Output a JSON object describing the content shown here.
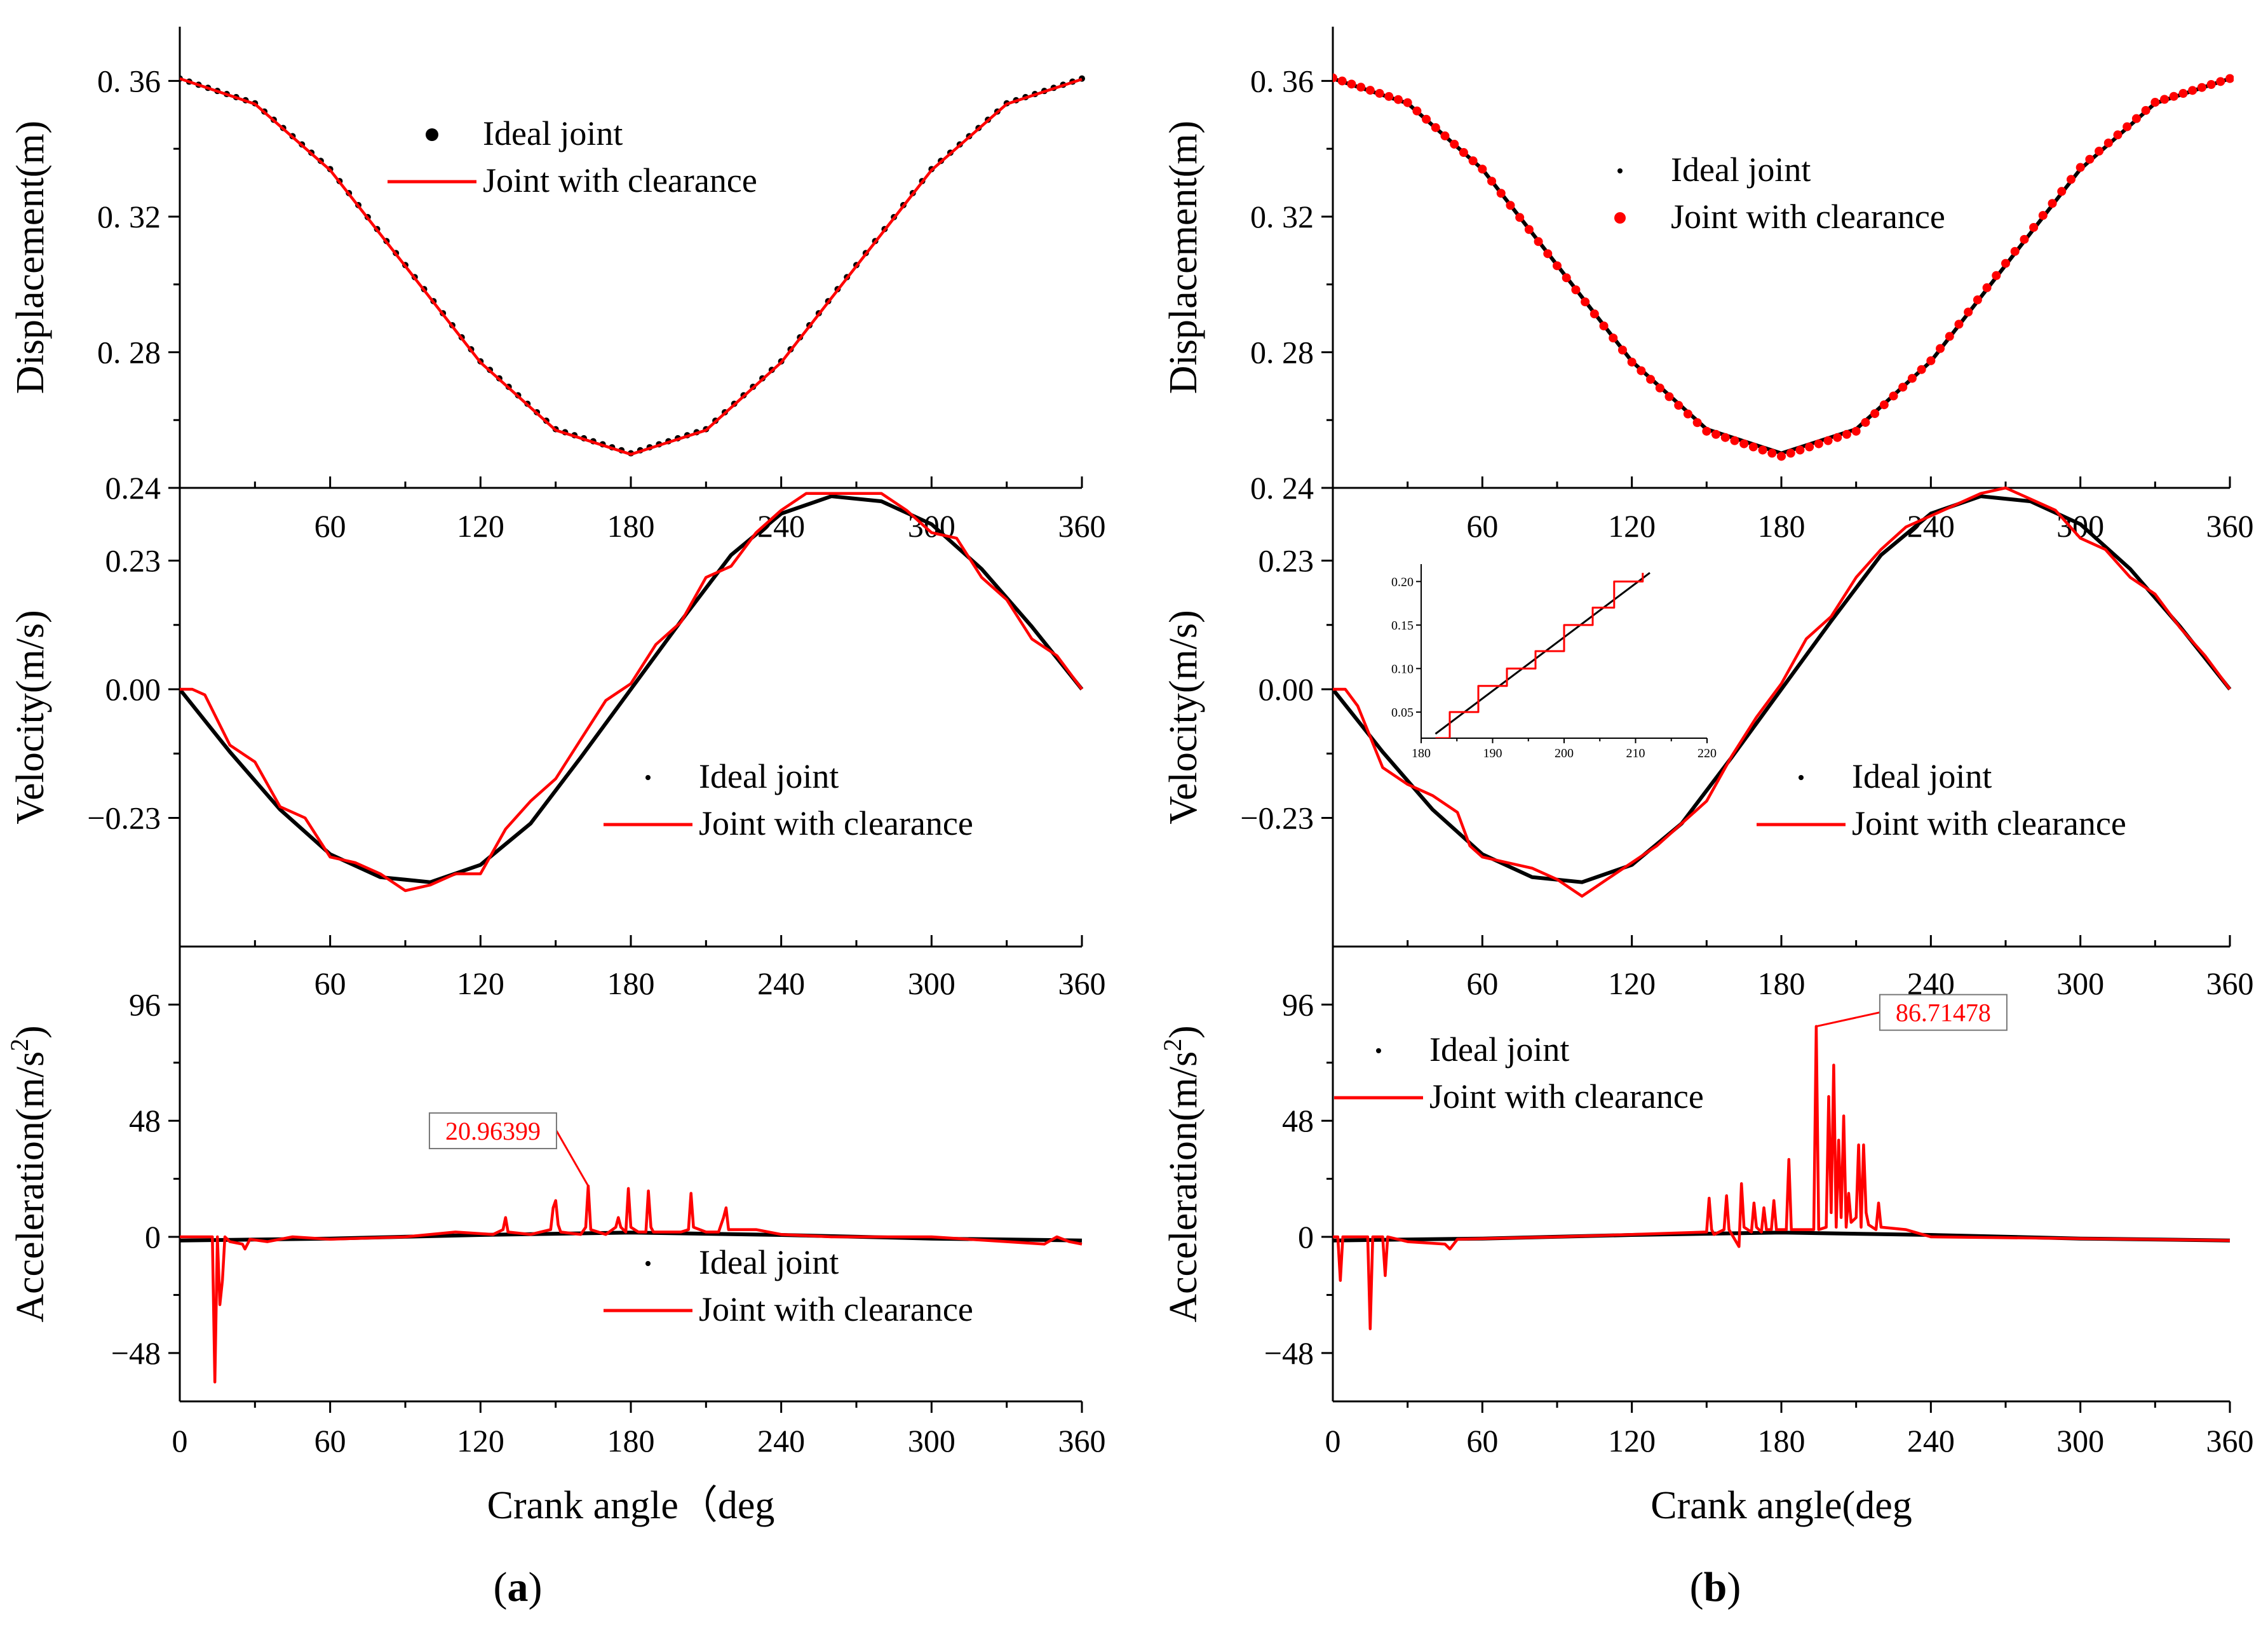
{
  "figure": {
    "panel_labels": [
      "a",
      "b"
    ],
    "colors": {
      "ideal": "#000000",
      "clearance": "#ff0000",
      "axis": "#000000"
    }
  },
  "chart_data": [
    {
      "id": "a-displacement",
      "type": "line",
      "panel": "a",
      "title": "",
      "xlabel": "",
      "ylabel": "Displacement(m)",
      "xlim": [
        0,
        360
      ],
      "ylim": [
        0.24,
        0.376
      ],
      "xticks": [
        60,
        120,
        180,
        240,
        300,
        360
      ],
      "yticks": [
        {
          "v": 0.24,
          "label": "0.24"
        },
        {
          "v": 0.28,
          "label": "0. 28"
        },
        {
          "v": 0.32,
          "label": "0. 32"
        },
        {
          "v": 0.36,
          "label": "0. 36"
        }
      ],
      "legend": [
        "Ideal joint",
        "Joint with clearance"
      ],
      "legend_position": "top-center",
      "series": [
        {
          "name": "Ideal joint",
          "style": "dots",
          "color": "#000000",
          "x": [
            0,
            30,
            60,
            90,
            120,
            150,
            180,
            210,
            240,
            270,
            300,
            330,
            360
          ],
          "y": [
            0.3607,
            0.3534,
            0.334,
            0.3057,
            0.2773,
            0.2573,
            0.2502,
            0.2573,
            0.2773,
            0.3057,
            0.334,
            0.3534,
            0.3607
          ]
        },
        {
          "name": "Joint with clearance",
          "style": "line",
          "color": "#ff0000",
          "x": [
            0,
            30,
            60,
            90,
            120,
            150,
            180,
            210,
            240,
            270,
            300,
            330,
            360
          ],
          "y": [
            0.3607,
            0.3532,
            0.3337,
            0.3054,
            0.277,
            0.257,
            0.2499,
            0.257,
            0.277,
            0.3054,
            0.3337,
            0.3532,
            0.3605
          ]
        }
      ]
    },
    {
      "id": "a-velocity",
      "type": "line",
      "panel": "a",
      "title": "",
      "xlabel": "",
      "ylabel": "Velocity(m/s)",
      "xlim": [
        0,
        360
      ],
      "ylim": [
        -0.46,
        0.36
      ],
      "xticks": [
        60,
        120,
        180,
        240,
        300,
        360
      ],
      "yticks": [
        {
          "v": -0.23,
          "label": "−0.23"
        },
        {
          "v": 0.0,
          "label": "0.00"
        },
        {
          "v": 0.23,
          "label": "0.23"
        }
      ],
      "legend": [
        "Ideal joint",
        "Joint with clearance"
      ],
      "legend_position": "center-right",
      "series": [
        {
          "name": "Ideal joint",
          "style": "line",
          "color": "#000000",
          "x": [
            0,
            20,
            40,
            60,
            80,
            100,
            120,
            140,
            160,
            180,
            200,
            220,
            240,
            260,
            280,
            300,
            320,
            340,
            360
          ],
          "y": [
            0,
            -0.112,
            -0.215,
            -0.295,
            -0.336,
            -0.345,
            -0.314,
            -0.24,
            -0.122,
            0.0,
            0.122,
            0.24,
            0.314,
            0.345,
            0.336,
            0.295,
            0.215,
            0.112,
            0
          ]
        },
        {
          "name": "Joint with clearance",
          "style": "line",
          "color": "#ff0000",
          "x": [
            0,
            5,
            10,
            20,
            30,
            40,
            50,
            60,
            70,
            80,
            90,
            100,
            110,
            120,
            130,
            140,
            150,
            160,
            170,
            180,
            190,
            200,
            210,
            220,
            230,
            240,
            250,
            260,
            270,
            280,
            290,
            300,
            310,
            320,
            330,
            340,
            350,
            360
          ],
          "y": [
            0,
            0,
            -0.01,
            -0.1,
            -0.13,
            -0.21,
            -0.23,
            -0.3,
            -0.31,
            -0.33,
            -0.36,
            -0.35,
            -0.33,
            -0.33,
            -0.25,
            -0.2,
            -0.16,
            -0.09,
            -0.02,
            0.01,
            0.08,
            0.12,
            0.2,
            0.22,
            0.28,
            0.32,
            0.35,
            0.35,
            0.35,
            0.35,
            0.32,
            0.28,
            0.27,
            0.2,
            0.16,
            0.09,
            0.06,
            0
          ]
        }
      ]
    },
    {
      "id": "a-acceleration",
      "type": "line",
      "panel": "a",
      "title": "",
      "xlabel": "Crank angle（deg",
      "ylabel": "Acceleration(m/s²)",
      "xlim": [
        0,
        360
      ],
      "ylim": [
        -68,
        120
      ],
      "xticks": [
        0,
        60,
        120,
        180,
        240,
        300,
        360
      ],
      "yticks": [
        {
          "v": -48,
          "label": "−48"
        },
        {
          "v": 0,
          "label": "0"
        },
        {
          "v": 48,
          "label": "48"
        },
        {
          "v": 96,
          "label": "96"
        }
      ],
      "legend": [
        "Ideal joint",
        "Joint with clearance"
      ],
      "legend_position": "bottom-right",
      "annotation": {
        "text": "20.96399",
        "x": 163,
        "y": 21
      },
      "series": [
        {
          "name": "Ideal joint",
          "style": "line",
          "color": "#000000",
          "x": [
            0,
            60,
            120,
            180,
            240,
            300,
            360
          ],
          "y": [
            -1.5,
            -0.7,
            0.8,
            1.8,
            0.8,
            -0.7,
            -1.5
          ]
        },
        {
          "name": "Joint with clearance",
          "style": "line",
          "color": "#ff0000",
          "x": [
            0,
            13,
            14,
            15,
            16,
            17,
            18,
            20,
            25,
            26,
            28,
            35,
            45,
            60,
            90,
            110,
            125,
            129,
            130,
            131,
            140,
            148,
            149,
            150,
            151,
            152,
            160,
            162,
            163,
            164,
            170,
            174,
            175,
            176,
            178,
            179,
            180,
            183,
            186,
            187,
            188,
            189,
            190,
            200,
            203,
            204,
            205,
            210,
            215,
            217,
            218,
            219,
            230,
            240,
            260,
            300,
            345,
            350,
            355,
            360
          ],
          "y": [
            0,
            0,
            -60,
            0,
            -28,
            -18,
            0,
            -2,
            -3,
            -5,
            -1,
            -2,
            0,
            -1,
            0,
            2,
            1,
            3,
            8,
            2,
            1,
            3,
            12,
            15,
            5,
            2,
            1,
            4,
            21,
            3,
            1,
            4,
            8,
            4,
            2,
            20,
            4,
            2,
            2,
            19,
            4,
            2,
            2,
            2,
            3,
            18,
            4,
            2,
            2,
            8,
            12,
            3,
            3,
            1,
            0,
            0,
            -3,
            0,
            -2,
            -3
          ]
        }
      ]
    },
    {
      "id": "b-displacement",
      "type": "line",
      "panel": "b",
      "title": "",
      "xlabel": "",
      "ylabel": "Displacement(m)",
      "xlim": [
        0,
        360
      ],
      "ylim": [
        0.24,
        0.376
      ],
      "xticks": [
        60,
        120,
        180,
        240,
        300,
        360
      ],
      "yticks": [
        {
          "v": 0.24,
          "label": "0. 24"
        },
        {
          "v": 0.28,
          "label": "0. 28"
        },
        {
          "v": 0.32,
          "label": "0. 32"
        },
        {
          "v": 0.36,
          "label": "0. 36"
        }
      ],
      "legend": [
        "Ideal joint",
        "Joint with clearance"
      ],
      "legend_position": "top-right",
      "series": [
        {
          "name": "Ideal joint",
          "style": "line",
          "color": "#000000",
          "x": [
            0,
            30,
            60,
            90,
            120,
            150,
            180,
            210,
            240,
            270,
            300,
            330,
            360
          ],
          "y": [
            0.3607,
            0.3534,
            0.334,
            0.3057,
            0.2773,
            0.2573,
            0.2502,
            0.2573,
            0.2773,
            0.3057,
            0.334,
            0.3534,
            0.3607
          ]
        },
        {
          "name": "Joint with clearance",
          "style": "dots",
          "color": "#ff0000",
          "x": [
            0,
            30,
            60,
            90,
            120,
            150,
            180,
            210,
            240,
            270,
            300,
            330,
            360
          ],
          "y": [
            0.3609,
            0.3536,
            0.334,
            0.3055,
            0.2771,
            0.2567,
            0.2493,
            0.2567,
            0.2775,
            0.3062,
            0.3345,
            0.3537,
            0.3607
          ]
        }
      ]
    },
    {
      "id": "b-velocity",
      "type": "line",
      "panel": "b",
      "title": "",
      "xlabel": "",
      "ylabel": "Velocity(m/s)",
      "xlim": [
        0,
        360
      ],
      "ylim": [
        -0.46,
        0.36
      ],
      "xticks": [
        60,
        120,
        180,
        240,
        300,
        360
      ],
      "yticks": [
        {
          "v": -0.23,
          "label": "−0.23"
        },
        {
          "v": 0.0,
          "label": "0.00"
        },
        {
          "v": 0.23,
          "label": "0.23"
        }
      ],
      "legend": [
        "Ideal joint",
        "Joint with clearance"
      ],
      "legend_position": "center-right",
      "series": [
        {
          "name": "Ideal joint",
          "style": "line",
          "color": "#000000",
          "x": [
            0,
            20,
            40,
            60,
            80,
            100,
            120,
            140,
            160,
            180,
            200,
            220,
            240,
            260,
            280,
            300,
            320,
            340,
            360
          ],
          "y": [
            0,
            -0.112,
            -0.215,
            -0.295,
            -0.336,
            -0.345,
            -0.314,
            -0.24,
            -0.122,
            0.0,
            0.122,
            0.24,
            0.314,
            0.345,
            0.336,
            0.295,
            0.215,
            0.112,
            0
          ]
        },
        {
          "name": "Joint with clearance",
          "style": "line",
          "color": "#ff0000",
          "x": [
            0,
            5,
            10,
            20,
            30,
            40,
            50,
            55,
            60,
            70,
            80,
            90,
            100,
            110,
            120,
            130,
            140,
            150,
            160,
            170,
            180,
            190,
            200,
            210,
            220,
            230,
            240,
            250,
            260,
            270,
            280,
            290,
            300,
            310,
            320,
            330,
            340,
            350,
            360
          ],
          "y": [
            0,
            0,
            -0.03,
            -0.14,
            -0.17,
            -0.19,
            -0.22,
            -0.28,
            -0.3,
            -0.31,
            -0.32,
            -0.34,
            -0.37,
            -0.34,
            -0.31,
            -0.28,
            -0.24,
            -0.2,
            -0.12,
            -0.05,
            0.01,
            0.09,
            0.13,
            0.2,
            0.25,
            0.29,
            0.31,
            0.33,
            0.35,
            0.36,
            0.34,
            0.32,
            0.27,
            0.25,
            0.2,
            0.17,
            0.11,
            0.06,
            0
          ]
        }
      ]
    },
    {
      "id": "b-velocity-inset",
      "type": "line",
      "panel": "b",
      "title": "",
      "xlabel": "",
      "ylabel": "",
      "xlim": [
        180,
        220
      ],
      "ylim": [
        0.02,
        0.22
      ],
      "xticks": [
        180,
        190,
        200,
        210,
        220
      ],
      "yticks": [
        {
          "v": 0.05,
          "label": "0.05"
        },
        {
          "v": 0.1,
          "label": "0.10"
        },
        {
          "v": 0.15,
          "label": "0.15"
        },
        {
          "v": 0.2,
          "label": "0.20"
        }
      ],
      "series": [
        {
          "name": "Ideal joint",
          "style": "line",
          "color": "#000000",
          "x": [
            182,
            212
          ],
          "y": [
            0.025,
            0.21
          ]
        },
        {
          "name": "Joint with clearance",
          "style": "step",
          "color": "#ff0000",
          "x": [
            182,
            184,
            184,
            188,
            188,
            192,
            192,
            196,
            196,
            200,
            200,
            204,
            204,
            207,
            207,
            211,
            211
          ],
          "y": [
            0.02,
            0.02,
            0.05,
            0.05,
            0.08,
            0.08,
            0.1,
            0.1,
            0.12,
            0.12,
            0.15,
            0.15,
            0.17,
            0.17,
            0.2,
            0.2,
            0.21
          ]
        }
      ]
    },
    {
      "id": "b-acceleration",
      "type": "line",
      "panel": "b",
      "title": "",
      "xlabel": "Crank angle(deg",
      "ylabel": "Acceleration(m/s²)",
      "xlim": [
        0,
        360
      ],
      "ylim": [
        -68,
        120
      ],
      "xticks": [
        0,
        60,
        120,
        180,
        240,
        300,
        360
      ],
      "yticks": [
        {
          "v": -48,
          "label": "−48"
        },
        {
          "v": 0,
          "label": "0"
        },
        {
          "v": 48,
          "label": "48"
        },
        {
          "v": 96,
          "label": "96"
        }
      ],
      "legend": [
        "Ideal joint",
        "Joint with clearance"
      ],
      "legend_position": "top-left",
      "annotation": {
        "text": "86.71478",
        "x": 194,
        "y": 87
      },
      "series": [
        {
          "name": "Ideal joint",
          "style": "line",
          "color": "#000000",
          "x": [
            0,
            60,
            120,
            180,
            240,
            300,
            360
          ],
          "y": [
            -1.5,
            -0.7,
            0.8,
            1.8,
            0.8,
            -0.7,
            -1.5
          ]
        },
        {
          "name": "Joint with clearance",
          "style": "line",
          "color": "#ff0000",
          "x": [
            0,
            2,
            3,
            4,
            14,
            15,
            16,
            20,
            21,
            22,
            30,
            45,
            47,
            50,
            90,
            120,
            150,
            151,
            152,
            153,
            157,
            158,
            159,
            163,
            164,
            165,
            168,
            169,
            170,
            172,
            173,
            174,
            176,
            177,
            178,
            182,
            183,
            184,
            190,
            193,
            194,
            195,
            198,
            199,
            200,
            201,
            202,
            203,
            204,
            205,
            206,
            207,
            208,
            210,
            211,
            212,
            213,
            214,
            215,
            218,
            219,
            220,
            230,
            240,
            300,
            360
          ],
          "y": [
            0,
            0,
            -18,
            0,
            0,
            -38,
            0,
            0,
            -16,
            0,
            -2,
            -3,
            -5,
            -1,
            0,
            1,
            2,
            16,
            3,
            1,
            3,
            17,
            3,
            -4,
            22,
            4,
            2,
            14,
            4,
            2,
            12,
            3,
            3,
            15,
            3,
            3,
            32,
            3,
            3,
            3,
            87,
            3,
            4,
            58,
            10,
            71,
            4,
            40,
            8,
            50,
            4,
            18,
            6,
            8,
            38,
            4,
            38,
            10,
            5,
            3,
            14,
            4,
            3,
            0,
            -0.7,
            -1.5
          ]
        }
      ]
    }
  ]
}
